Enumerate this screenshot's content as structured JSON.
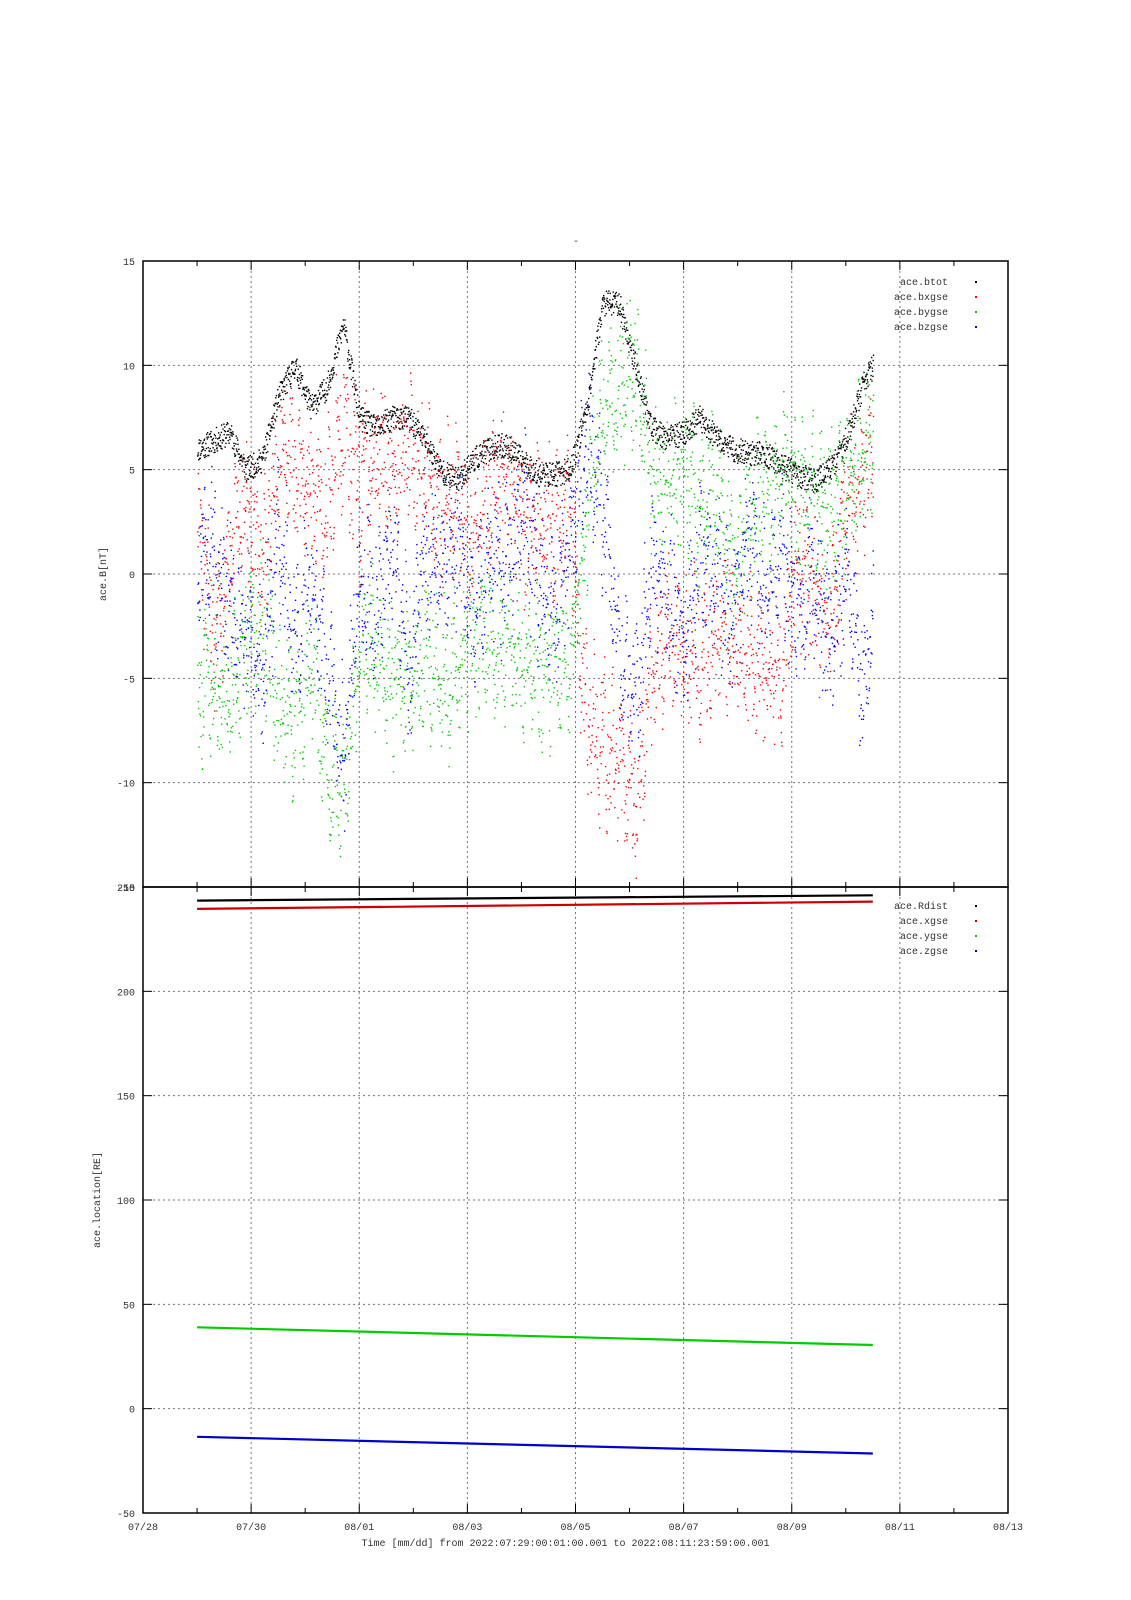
{
  "chart_data": [
    {
      "type": "scatter",
      "title": "-",
      "xlabel": "",
      "ylabel": "ace.B[nT]",
      "xlim": [
        "07/28",
        "08/13"
      ],
      "ylim": [
        -15,
        15
      ],
      "yticks": [
        15,
        10,
        5,
        0,
        -5,
        -10,
        -15
      ],
      "grid": true,
      "legend_position": "top-right",
      "series": [
        {
          "name": "ace.btot",
          "color": "#000000",
          "x": [
            29.0,
            29.3,
            29.6,
            29.9,
            30.2,
            30.5,
            30.8,
            31.1,
            31.4,
            31.7,
            32.0,
            32.3,
            32.6,
            32.9,
            33.2,
            33.5,
            33.8,
            34.1,
            34.4,
            34.7,
            35.0,
            35.3,
            35.6,
            35.9,
            36.2,
            36.5,
            36.8,
            37.1,
            37.4,
            37.7,
            38.0,
            38.3,
            38.6,
            38.9,
            39.2,
            39.5,
            39.8,
            40.1,
            40.4,
            40.7,
            41.0,
            41.3,
            41.5
          ],
          "y": [
            6,
            6.4,
            6.8,
            5,
            5.5,
            8.5,
            10,
            8,
            9,
            12,
            7.5,
            7,
            7.5,
            7.5,
            6.5,
            5,
            4.5,
            5.5,
            6,
            6.2,
            5.5,
            4.8,
            4.8,
            5,
            8,
            13,
            13,
            10,
            7,
            6.5,
            6.8,
            7.5,
            6.5,
            6,
            5.8,
            5.8,
            5.2,
            4.8,
            4.5,
            5,
            6.5,
            9,
            10
          ]
        },
        {
          "name": "ace.bxgse",
          "color": "#ff0000",
          "x": [
            29.0,
            29.3,
            29.6,
            29.9,
            30.2,
            30.5,
            30.8,
            31.1,
            31.4,
            31.7,
            32.0,
            32.3,
            32.6,
            32.9,
            33.2,
            33.5,
            33.8,
            34.1,
            34.4,
            34.7,
            35.0,
            35.3,
            35.6,
            35.9,
            36.2,
            36.5,
            36.8,
            37.1,
            37.4,
            37.7,
            38.0,
            38.3,
            38.6,
            38.9,
            39.2,
            39.5,
            39.8,
            40.1,
            40.4,
            40.7,
            41.0,
            41.3,
            41.5
          ],
          "y": [
            2,
            -2.5,
            1,
            3,
            0.5,
            6,
            5,
            4,
            3,
            7,
            4,
            6,
            5,
            5.5,
            5,
            3,
            3.5,
            2,
            4,
            4.5,
            2,
            3,
            2,
            2.5,
            -7,
            -8,
            -9,
            -11,
            -5,
            -3,
            -3.5,
            -4,
            -3,
            -3.5,
            -4,
            -4.5,
            -5,
            1,
            -1,
            -2,
            3,
            5,
            6
          ]
        },
        {
          "name": "ace.bygse",
          "color": "#00cc00",
          "x": [
            29.0,
            29.3,
            29.6,
            29.9,
            30.2,
            30.5,
            30.8,
            31.1,
            31.4,
            31.7,
            32.0,
            32.3,
            32.6,
            32.9,
            33.2,
            33.5,
            33.8,
            34.1,
            34.4,
            34.7,
            35.0,
            35.3,
            35.6,
            35.9,
            36.2,
            36.5,
            36.8,
            37.1,
            37.4,
            37.7,
            38.0,
            38.3,
            38.6,
            38.9,
            39.2,
            39.5,
            39.8,
            40.1,
            40.4,
            40.7,
            41.0,
            41.3,
            41.5
          ],
          "y": [
            -5.5,
            -5.5,
            -6,
            -3,
            -2,
            -6,
            -7,
            -4,
            -9,
            -11,
            -3,
            -4,
            -5,
            -5,
            -4,
            -5,
            -5,
            -3,
            -3,
            -3.5,
            -4,
            -4.5,
            -4,
            -4.5,
            3,
            8,
            9,
            10,
            5,
            4,
            5,
            3,
            4,
            1,
            3,
            4,
            4.5,
            4,
            3.5,
            3,
            4,
            6,
            7
          ]
        },
        {
          "name": "ace.bzgse",
          "color": "#0000ff",
          "x": [
            29.0,
            29.3,
            29.6,
            29.9,
            30.2,
            30.5,
            30.8,
            31.1,
            31.4,
            31.7,
            32.0,
            32.3,
            32.6,
            32.9,
            33.2,
            33.5,
            33.8,
            34.1,
            34.4,
            34.7,
            35.0,
            35.3,
            35.6,
            35.9,
            36.2,
            36.5,
            36.8,
            37.1,
            37.4,
            37.7,
            38.0,
            38.3,
            38.6,
            38.9,
            39.2,
            39.5,
            39.8,
            40.1,
            40.4,
            40.7,
            41.0,
            41.3,
            41.5
          ],
          "y": [
            0,
            1,
            -2,
            -3,
            -5,
            2,
            -3,
            0,
            -5,
            -9,
            0,
            -2,
            2,
            -5,
            1,
            0,
            2,
            -2,
            1,
            0,
            3,
            0,
            -2,
            1,
            6,
            3,
            -4,
            -6,
            0,
            -1,
            -3,
            1,
            0,
            -3,
            2,
            -1,
            1,
            -2,
            0,
            -3,
            0,
            -5,
            -2
          ]
        }
      ]
    },
    {
      "type": "line",
      "title": "",
      "xlabel": "Time [mm/dd]  from 2022:07:29:00:01:00.001  to  2022:08:11:23:59:00.001",
      "ylabel": "ace.location[RE]",
      "xlim": [
        "07/28",
        "08/13"
      ],
      "ylim": [
        -50,
        250
      ],
      "yticks": [
        250,
        200,
        150,
        100,
        50,
        0,
        -50
      ],
      "grid": true,
      "legend_position": "top-right",
      "series": [
        {
          "name": "ace.Rdist",
          "color": "#000000",
          "x": [
            29.0,
            41.5
          ],
          "y": [
            243.5,
            246
          ]
        },
        {
          "name": "ace.xgse",
          "color": "#cc0000",
          "x": [
            29.0,
            41.5
          ],
          "y": [
            239.5,
            243
          ]
        },
        {
          "name": "ace.ygse",
          "color": "#00cc00",
          "x": [
            29.0,
            41.5
          ],
          "y": [
            39,
            30.5
          ]
        },
        {
          "name": "ace.zgse",
          "color": "#0000cc",
          "x": [
            29.0,
            41.5
          ],
          "y": [
            -13.5,
            -21.5
          ]
        }
      ]
    }
  ],
  "x_ticks": [
    "07/28",
    "07/30",
    "08/01",
    "08/03",
    "08/05",
    "08/07",
    "08/09",
    "08/11",
    "08/13"
  ]
}
